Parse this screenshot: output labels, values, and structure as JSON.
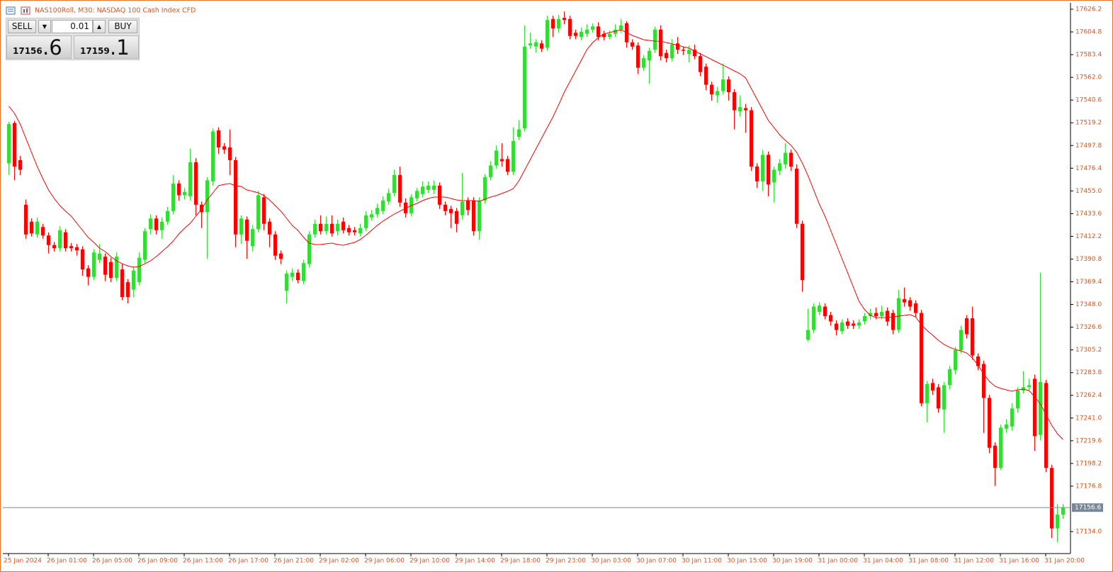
{
  "chart_data": {
    "type": "candlestick",
    "title": "NAS100Roll, M30:  NASDAQ 100 Cash Index CFD",
    "up_color": "#33dd33",
    "down_color": "#ff0000",
    "categories": [
      "25 Jan 2024",
      null,
      null,
      null,
      null,
      null,
      null,
      "26 Jan 01:00",
      null,
      null,
      null,
      null,
      null,
      null,
      null,
      "26 Jan 05:00",
      null,
      null,
      null,
      null,
      null,
      null,
      null,
      "26 Jan 09:00",
      null,
      null,
      null,
      null,
      null,
      null,
      null,
      "26 Jan 13:00",
      null,
      null,
      null,
      null,
      null,
      null,
      null,
      "26 Jan 17:00",
      null,
      null,
      null,
      null,
      null,
      null,
      null,
      "26 Jan 21:00",
      null,
      null,
      null,
      null,
      null,
      null,
      null,
      "29 Jan 02:00",
      null,
      null,
      null,
      null,
      null,
      null,
      null,
      "29 Jan 06:00",
      null,
      null,
      null,
      null,
      null,
      null,
      null,
      "29 Jan 10:00",
      null,
      null,
      null,
      null,
      null,
      null,
      null,
      "29 Jan 14:00",
      null,
      null,
      null,
      null,
      null,
      null,
      null,
      "29 Jan 18:00",
      null,
      null,
      null,
      null,
      null,
      null,
      null,
      "29 Jan 23:00",
      null,
      null,
      null,
      null,
      null,
      null,
      null,
      "30 Jan 03:00",
      null,
      null,
      null,
      null,
      null,
      null,
      null,
      "30 Jan 07:00",
      null,
      null,
      null,
      null,
      null,
      null,
      null,
      "30 Jan 11:00",
      null,
      null,
      null,
      null,
      null,
      null,
      null,
      "30 Jan 15:00",
      null,
      null,
      null,
      null,
      null,
      null,
      null,
      "30 Jan 19:00",
      null,
      null,
      null,
      null,
      null,
      null,
      null,
      "31 Jan 00:00",
      null,
      null,
      null,
      null,
      null,
      null,
      null,
      "31 Jan 04:00",
      null,
      null,
      null,
      null,
      null,
      null,
      null,
      "31 Jan 08:00",
      null,
      null,
      null,
      null,
      null,
      null,
      null,
      "31 Jan 12:00",
      null,
      null,
      null,
      null,
      null,
      null,
      null,
      "31 Jan 16:00",
      null,
      null,
      null,
      null,
      null,
      null,
      null,
      "31 Jan 20:00",
      null,
      null,
      null
    ],
    "open": [
      17481,
      17519,
      17484,
      17442,
      17426,
      17414,
      17421,
      17413,
      17404,
      17401,
      17416,
      17403,
      17402,
      17400,
      17382,
      17374,
      17390,
      17393,
      17388,
      17373,
      17381,
      17369,
      17362,
      17369,
      17390,
      17419,
      17429,
      17418,
      17426,
      17436,
      17462,
      17451,
      17450,
      17482,
      17442,
      17435,
      17464,
      17512,
      17497,
      17496,
      17484,
      17414,
      17428,
      17403,
      17419,
      17449,
      17426,
      17414,
      17396,
      17361,
      17374,
      17378,
      17370,
      17386,
      17414,
      17424,
      17417,
      17424,
      17417,
      17426,
      17420,
      17418,
      17415,
      17420,
      17430,
      17433,
      17436,
      17445,
      17453,
      17470,
      17444,
      17434,
      17448,
      17452,
      17456,
      17456,
      17460,
      17442,
      17438,
      17436,
      17432,
      17446,
      17446,
      17417,
      17446,
      17468,
      17479,
      17485,
      17485,
      17473,
      17506,
      17514,
      17592,
      17591,
      17594,
      17590,
      17617,
      17608,
      17618,
      17617,
      17604,
      17600,
      17603,
      17607,
      17610,
      17603,
      17600,
      17603,
      17607,
      17613,
      17595,
      17592,
      17571,
      17578,
      17588,
      17607,
      17585,
      17580,
      17594,
      17588,
      17584,
      17588,
      17582,
      17572,
      17555,
      17545,
      17549,
      17560,
      17548,
      17530,
      17533,
      17531,
      17478,
      17464,
      17489,
      17463,
      17474,
      17480,
      17491,
      17476,
      17424,
      17315,
      17324,
      17341,
      17346,
      17338,
      17330,
      17323,
      17332,
      17330,
      17328,
      17332,
      17337,
      17340,
      17337,
      17342,
      17340,
      17324,
      17353,
      17352,
      17349,
      17340,
      17255,
      17274,
      17270,
      17249,
      17272,
      17286,
      17305,
      17335,
      17335,
      17299,
      17292,
      17260,
      17215,
      17194,
      17231,
      17233,
      17250,
      17267,
      17270,
      17278,
      17225,
      17274,
      17194,
      17137,
      17150
    ],
    "high": [
      17520,
      17521,
      17488,
      17447,
      17429,
      17430,
      17424,
      17416,
      17407,
      17422,
      17419,
      17406,
      17405,
      17403,
      17385,
      17400,
      17405,
      17396,
      17392,
      17397,
      17386,
      17372,
      17384,
      17397,
      17420,
      17433,
      17432,
      17430,
      17440,
      17470,
      17465,
      17458,
      17495,
      17486,
      17445,
      17468,
      17514,
      17515,
      17500,
      17513,
      17487,
      17432,
      17431,
      17423,
      17455,
      17452,
      17429,
      17417,
      17399,
      17380,
      17382,
      17381,
      17390,
      17417,
      17428,
      17432,
      17431,
      17432,
      17428,
      17430,
      17423,
      17421,
      17424,
      17436,
      17437,
      17443,
      17450,
      17457,
      17475,
      17478,
      17448,
      17452,
      17458,
      17464,
      17464,
      17465,
      17463,
      17445,
      17441,
      17439,
      17472,
      17449,
      17449,
      17449,
      17471,
      17483,
      17498,
      17500,
      17488,
      17515,
      17522,
      17611,
      17604,
      17598,
      17597,
      17620,
      17620,
      17621,
      17624,
      17620,
      17607,
      17609,
      17612,
      17613,
      17614,
      17606,
      17606,
      17612,
      17617,
      17615,
      17598,
      17595,
      17583,
      17590,
      17610,
      17611,
      17588,
      17598,
      17600,
      17591,
      17592,
      17593,
      17585,
      17575,
      17558,
      17553,
      17575,
      17563,
      17551,
      17545,
      17537,
      17534,
      17481,
      17494,
      17492,
      17478,
      17485,
      17500,
      17494,
      17480,
      17427,
      17344,
      17349,
      17350,
      17349,
      17341,
      17333,
      17334,
      17335,
      17333,
      17334,
      17340,
      17344,
      17345,
      17347,
      17345,
      17343,
      17362,
      17364,
      17355,
      17352,
      17343,
      17276,
      17278,
      17273,
      17275,
      17290,
      17308,
      17328,
      17338,
      17346,
      17302,
      17295,
      17263,
      17218,
      17235,
      17240,
      17255,
      17270,
      17285,
      17278,
      17282,
      17378,
      17277,
      17197,
      17160,
      17160
    ],
    "low": [
      17470,
      17465,
      17470,
      17410,
      17412,
      17411,
      17410,
      17396,
      17398,
      17398,
      17398,
      17398,
      17394,
      17375,
      17366,
      17371,
      17387,
      17370,
      17369,
      17370,
      17352,
      17349,
      17355,
      17366,
      17387,
      17414,
      17414,
      17410,
      17423,
      17433,
      17446,
      17447,
      17446,
      17432,
      17420,
      17391,
      17460,
      17490,
      17490,
      17470,
      17402,
      17405,
      17391,
      17398,
      17416,
      17418,
      17402,
      17390,
      17386,
      17349,
      17370,
      17368,
      17367,
      17383,
      17411,
      17414,
      17414,
      17412,
      17413,
      17415,
      17413,
      17413,
      17412,
      17417,
      17427,
      17430,
      17433,
      17442,
      17450,
      17440,
      17430,
      17431,
      17445,
      17449,
      17453,
      17452,
      17438,
      17432,
      17420,
      17416,
      17428,
      17432,
      17413,
      17409,
      17443,
      17465,
      17476,
      17478,
      17470,
      17470,
      17503,
      17511,
      17589,
      17585,
      17586,
      17587,
      17600,
      17604,
      17612,
      17598,
      17598,
      17597,
      17600,
      17604,
      17597,
      17597,
      17598,
      17600,
      17604,
      17590,
      17588,
      17565,
      17568,
      17556,
      17585,
      17578,
      17576,
      17577,
      17584,
      17583,
      17576,
      17579,
      17563,
      17550,
      17540,
      17538,
      17546,
      17540,
      17513,
      17525,
      17510,
      17474,
      17458,
      17455,
      17450,
      17444,
      17470,
      17476,
      17474,
      17420,
      17360,
      17313,
      17321,
      17338,
      17334,
      17328,
      17319,
      17320,
      17325,
      17325,
      17325,
      17329,
      17334,
      17334,
      17334,
      17328,
      17320,
      17321,
      17346,
      17342,
      17336,
      17252,
      17237,
      17263,
      17246,
      17227,
      17268,
      17282,
      17302,
      17316,
      17296,
      17286,
      17227,
      17208,
      17177,
      17192,
      17227,
      17229,
      17246,
      17264,
      17267,
      17210,
      17220,
      17190,
      17128,
      17124,
      17146
    ],
    "close": [
      17518,
      17478,
      17475,
      17414,
      17415,
      17426,
      17413,
      17404,
      17401,
      17418,
      17401,
      17401,
      17399,
      17381,
      17374,
      17397,
      17396,
      17376,
      17373,
      17393,
      17355,
      17355,
      17380,
      17392,
      17417,
      17429,
      17418,
      17426,
      17436,
      17462,
      17451,
      17454,
      17482,
      17442,
      17435,
      17465,
      17511,
      17496,
      17494,
      17484,
      17414,
      17429,
      17408,
      17419,
      17451,
      17424,
      17414,
      17394,
      17391,
      17377,
      17378,
      17371,
      17387,
      17414,
      17424,
      17417,
      17424,
      17415,
      17424,
      17418,
      17416,
      17416,
      17420,
      17432,
      17433,
      17439,
      17446,
      17453,
      17470,
      17444,
      17434,
      17449,
      17455,
      17459,
      17460,
      17460,
      17442,
      17436,
      17434,
      17424,
      17445,
      17437,
      17417,
      17446,
      17468,
      17479,
      17493,
      17483,
      17473,
      17502,
      17513,
      17591,
      17594,
      17595,
      17589,
      17616,
      17608,
      17617,
      17616,
      17601,
      17601,
      17605,
      17607,
      17610,
      17600,
      17600,
      17603,
      17607,
      17611,
      17595,
      17591,
      17571,
      17580,
      17587,
      17607,
      17582,
      17580,
      17593,
      17588,
      17587,
      17588,
      17582,
      17567,
      17555,
      17546,
      17549,
      17560,
      17548,
      17531,
      17534,
      17531,
      17478,
      17464,
      17489,
      17461,
      17475,
      17481,
      17491,
      17478,
      17424,
      17371,
      17324,
      17346,
      17347,
      17337,
      17332,
      17324,
      17331,
      17328,
      17328,
      17331,
      17337,
      17340,
      17337,
      17341,
      17332,
      17324,
      17354,
      17350,
      17346,
      17340,
      17255,
      17273,
      17267,
      17250,
      17272,
      17287,
      17305,
      17324,
      17320,
      17300,
      17290,
      17260,
      17213,
      17194,
      17232,
      17235,
      17250,
      17267,
      17270,
      17272,
      17224,
      17275,
      17194,
      17137,
      17150,
      17156.6
    ],
    "ma": {
      "color": "#ff0000",
      "values": [
        17534.7,
        17528.0,
        17518.0,
        17504.7,
        17491.3,
        17478.0,
        17466.6,
        17455.9,
        17447.9,
        17441.2,
        17435.9,
        17431.2,
        17424.5,
        17417.8,
        17411.2,
        17406.5,
        17401.1,
        17397.8,
        17393.1,
        17389.1,
        17386.4,
        17384.4,
        17383.1,
        17383.8,
        17386.4,
        17389.1,
        17393.1,
        17397.8,
        17402.5,
        17407.8,
        17414.5,
        17419.8,
        17424.5,
        17431.2,
        17437.9,
        17446.5,
        17453.2,
        17459.9,
        17461.2,
        17461.9,
        17459.9,
        17459.2,
        17455.9,
        17454.6,
        17453.2,
        17450.6,
        17446.5,
        17441.2,
        17435.9,
        17429.2,
        17422.5,
        17417.8,
        17411.2,
        17405.8,
        17404.5,
        17404.5,
        17405.2,
        17405.8,
        17404.5,
        17403.8,
        17405.2,
        17406.5,
        17409.2,
        17413.2,
        17417.8,
        17422.5,
        17426.5,
        17429.9,
        17433.2,
        17435.9,
        17438.5,
        17441.2,
        17443.2,
        17445.9,
        17447.9,
        17449.2,
        17449.2,
        17449.2,
        17447.9,
        17446.5,
        17445.9,
        17445.9,
        17445.9,
        17445.2,
        17447.2,
        17449.2,
        17450.6,
        17452.6,
        17454.6,
        17457.2,
        17464.6,
        17474.6,
        17484.6,
        17494.6,
        17504.7,
        17514.7,
        17524.7,
        17536.1,
        17548.1,
        17558.1,
        17568.1,
        17578.1,
        17588.2,
        17594.8,
        17599.5,
        17602.8,
        17604.2,
        17605.5,
        17606.8,
        17604.2,
        17601.5,
        17599.5,
        17597.5,
        17596.8,
        17596.1,
        17596.1,
        17594.8,
        17593.5,
        17592.2,
        17590.8,
        17589.5,
        17586.8,
        17584.1,
        17581.5,
        17578.8,
        17576.1,
        17573.5,
        17570.8,
        17568.1,
        17565.4,
        17561.4,
        17551.4,
        17541.4,
        17531.4,
        17521.4,
        17514.7,
        17508.0,
        17502.7,
        17498.0,
        17491.3,
        17481.3,
        17469.3,
        17455.9,
        17442.5,
        17431.2,
        17417.8,
        17404.5,
        17391.1,
        17377.8,
        17364.4,
        17351.0,
        17343.0,
        17337.7,
        17335.7,
        17335.7,
        17335.7,
        17336.3,
        17337.0,
        17337.7,
        17338.4,
        17336.3,
        17329.0,
        17323.6,
        17319.0,
        17314.3,
        17310.3,
        17307.6,
        17305.6,
        17304.3,
        17302.3,
        17297.6,
        17290.9,
        17282.3,
        17275.6,
        17270.9,
        17268.9,
        17267.6,
        17266.2,
        17267.6,
        17268.2,
        17266.9,
        17260.9,
        17254.2,
        17244.2,
        17234.2,
        17226.2,
        17220.9
      ]
    },
    "price_line": 17156.6,
    "price_line_color": "#778899",
    "ylim": [
      17113.3,
      17632.2
    ],
    "yticks": [
      17626.2,
      17604.8,
      17583.4,
      {
        "value": 17562,
        "label": "17562.0"
      },
      17540.6,
      17519.2,
      17497.8,
      17476.4,
      {
        "value": 17455,
        "label": "17455.0"
      },
      17433.6,
      17412.2,
      17390.8,
      17369.4,
      {
        "value": 17348,
        "label": "17348.0"
      },
      17326.6,
      17305.2,
      17283.8,
      17262.4,
      {
        "value": 17241,
        "label": "17241.0"
      },
      17219.6,
      17198.2,
      17176.8,
      {
        "value": 17134,
        "label": "17134.0"
      }
    ]
  },
  "panel": {
    "sell": "SELL",
    "buy": "BUY",
    "lot": "0.01",
    "bid": "17156",
    "bid_frac": ".6",
    "ask": "17159",
    "ask_frac": ".1"
  }
}
